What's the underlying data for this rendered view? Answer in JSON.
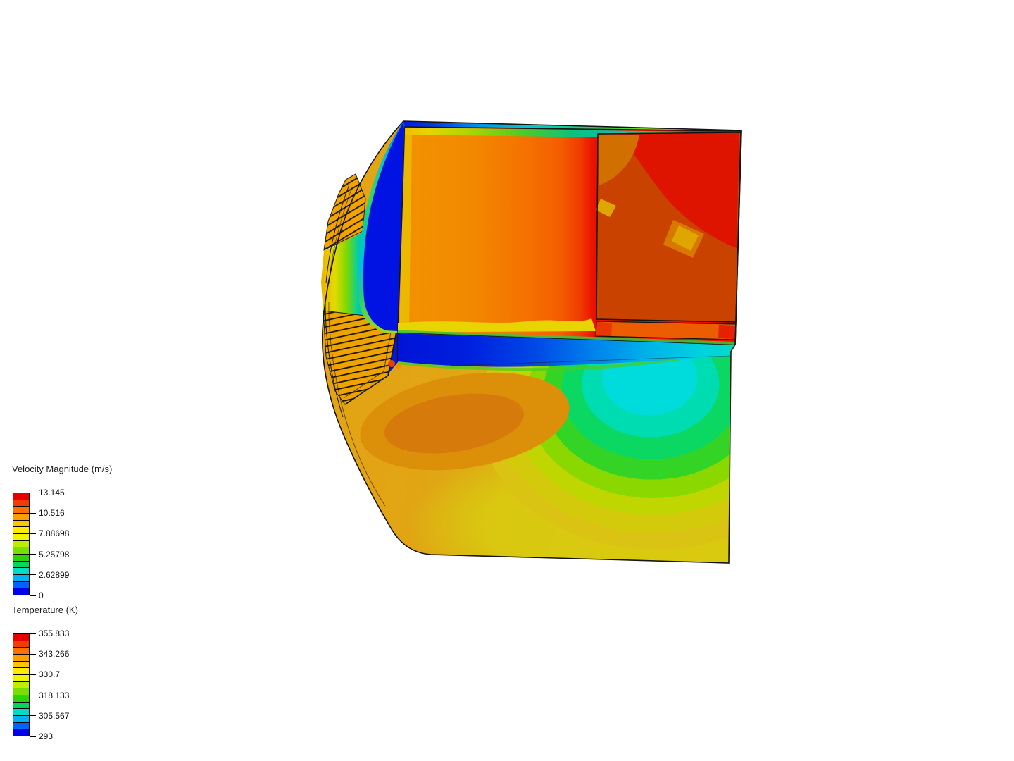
{
  "chart_data": [
    {
      "id": "velocity",
      "type": "heatmap",
      "title": "Velocity Magnitude (m/s)",
      "quantity": "Velocity Magnitude",
      "unit": "m/s",
      "range_min": 0,
      "range_max": 13.145,
      "tick_labels": [
        "13.145",
        "10.516",
        "7.88698",
        "5.25798",
        "2.62899",
        "0"
      ],
      "tick_values": [
        13.145,
        10.516,
        7.88698,
        5.25798,
        2.62899,
        0
      ],
      "num_color_bands": 15,
      "band_colors_top_to_bottom": [
        "#E60000",
        "#F33A00",
        "#FF7000",
        "#FF9C00",
        "#FFC400",
        "#FFEA00",
        "#EFF400",
        "#C0EC00",
        "#78E000",
        "#2AD400",
        "#00D65C",
        "#00DCC4",
        "#00B2F4",
        "#0062FF",
        "#0000E8"
      ],
      "legend_position": "bottom-left"
    },
    {
      "id": "temperature",
      "type": "heatmap",
      "title": "Temperature (K)",
      "quantity": "Temperature",
      "unit": "K",
      "range_min": 293,
      "range_max": 355.833,
      "tick_labels": [
        "355.833",
        "343.266",
        "330.7",
        "318.133",
        "305.567",
        "293"
      ],
      "tick_values": [
        355.833,
        343.266,
        330.7,
        318.133,
        305.567,
        293
      ],
      "num_color_bands": 15,
      "band_colors_top_to_bottom": [
        "#E60000",
        "#F33A00",
        "#FF7000",
        "#FF9C00",
        "#FFC400",
        "#FFEA00",
        "#EFF400",
        "#C0EC00",
        "#78E000",
        "#2AD400",
        "#00D65C",
        "#00DCC4",
        "#00B2F4",
        "#0062FF",
        "#0000E8"
      ],
      "legend_position": "bottom-left"
    }
  ],
  "scene": {
    "type": "3d-cfd-post-processing-view",
    "background": "#FFFFFF",
    "outline_color": "#141414",
    "regions": [
      {
        "name": "enclosure-interior-warm",
        "color": "#F39200"
      },
      {
        "name": "enclosure-interior-hot",
        "color": "#E90E00"
      },
      {
        "name": "inner-component",
        "color": "#C94200"
      },
      {
        "name": "stagnant-air-band",
        "color": "#0013E2"
      },
      {
        "name": "heatsink-fins",
        "color": "#F1A300"
      },
      {
        "name": "solid-body",
        "color": "#E2A515"
      },
      {
        "name": "cool-air-core",
        "color": "#00DCDC"
      },
      {
        "name": "air-jet",
        "color": "#0014D8"
      }
    ]
  }
}
